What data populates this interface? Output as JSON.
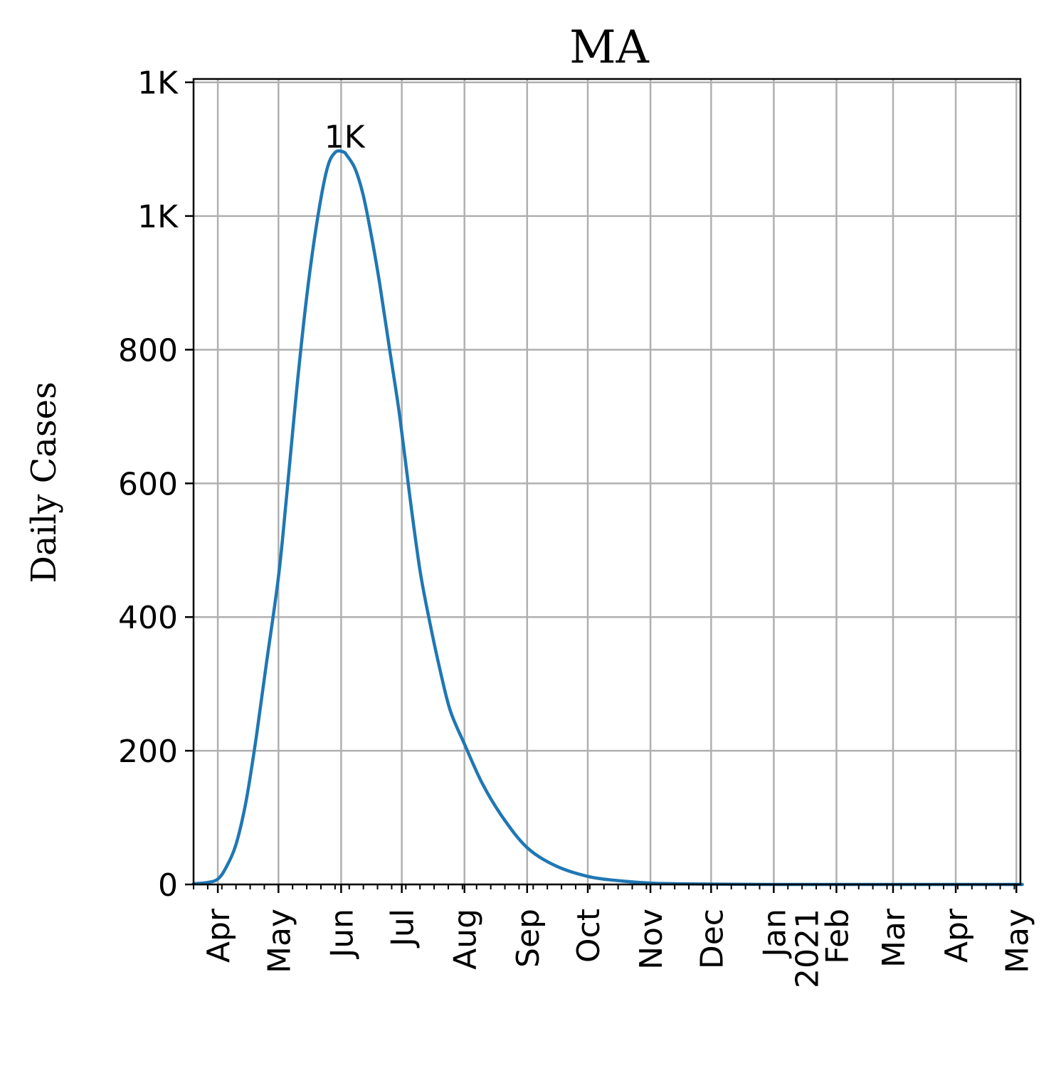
{
  "chart_data": {
    "type": "line",
    "title": "MA",
    "xlabel": "",
    "ylabel": "Daily Cases",
    "xlim": [
      "2020-03-20",
      "2021-05-03"
    ],
    "ylim": [
      0,
      1205
    ],
    "grid": true,
    "line_color": "#1f77b4",
    "yticks": [
      {
        "value": 0,
        "label": "0"
      },
      {
        "value": 200,
        "label": "200"
      },
      {
        "value": 400,
        "label": "400"
      },
      {
        "value": 600,
        "label": "600"
      },
      {
        "value": 800,
        "label": "800"
      },
      {
        "value": 1000,
        "label": "1K"
      },
      {
        "value": 1200,
        "label": "1K"
      }
    ],
    "xticks": [
      {
        "date": "2020-04-01",
        "label": "Apr"
      },
      {
        "date": "2020-05-01",
        "label": "May"
      },
      {
        "date": "2020-06-01",
        "label": "Jun"
      },
      {
        "date": "2020-07-01",
        "label": "Jul"
      },
      {
        "date": "2020-08-01",
        "label": "Aug"
      },
      {
        "date": "2020-09-01",
        "label": "Sep"
      },
      {
        "date": "2020-10-01",
        "label": "Oct"
      },
      {
        "date": "2020-11-01",
        "label": "Nov"
      },
      {
        "date": "2020-12-01",
        "label": "Dec"
      },
      {
        "date": "2021-01-01",
        "label": "Jan\n2021"
      },
      {
        "date": "2021-02-01",
        "label": "Feb"
      },
      {
        "date": "2021-03-01",
        "label": "Mar"
      },
      {
        "date": "2021-04-01",
        "label": "Apr"
      },
      {
        "date": "2021-05-01",
        "label": "May"
      }
    ],
    "series": [
      {
        "x": [
          "2020-03-20",
          "2020-03-27",
          "2020-04-01",
          "2020-04-05",
          "2020-04-10",
          "2020-04-15",
          "2020-04-20",
          "2020-04-25",
          "2020-05-01",
          "2020-05-05",
          "2020-05-10",
          "2020-05-15",
          "2020-05-20",
          "2020-05-25",
          "2020-05-29",
          "2020-06-02",
          "2020-06-04",
          "2020-06-08",
          "2020-06-12",
          "2020-06-16",
          "2020-06-20",
          "2020-06-25",
          "2020-06-30",
          "2020-07-05",
          "2020-07-10",
          "2020-07-15",
          "2020-07-20",
          "2020-07-25",
          "2020-08-01",
          "2020-08-10",
          "2020-08-20",
          "2020-09-01",
          "2020-09-15",
          "2020-10-01",
          "2020-10-15",
          "2020-11-01",
          "2020-11-15",
          "2020-12-01",
          "2021-01-01",
          "2021-02-01",
          "2021-03-01",
          "2021-04-01",
          "2021-05-01",
          "2021-05-03"
        ],
        "values": [
          1,
          3,
          8,
          25,
          60,
          125,
          220,
          330,
          460,
          580,
          740,
          880,
          990,
          1070,
          1095,
          1096,
          1090,
          1070,
          1030,
          970,
          900,
          800,
          700,
          580,
          470,
          390,
          320,
          260,
          210,
          150,
          100,
          55,
          28,
          12,
          6,
          2,
          1,
          0.5,
          0,
          0,
          0,
          0,
          0,
          0
        ]
      }
    ],
    "annotations": [
      {
        "text": "1K",
        "x": "2020-06-02",
        "y": 1096
      }
    ]
  }
}
